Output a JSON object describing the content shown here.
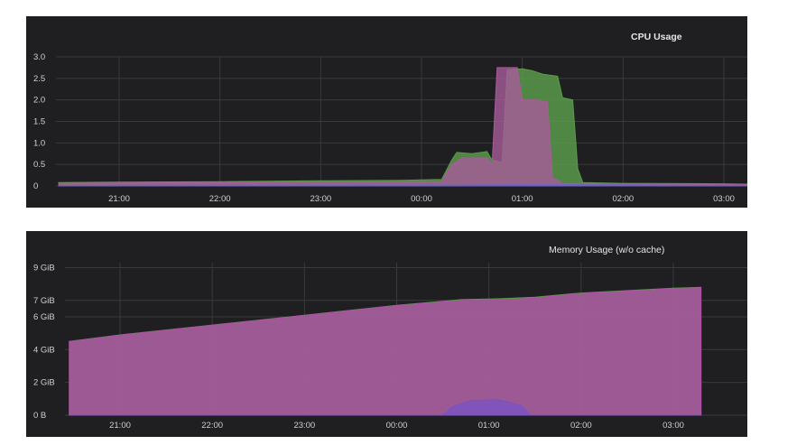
{
  "chart_data": [
    {
      "type": "area",
      "title": "CPU Usage",
      "x_ticks": [
        "21:00",
        "22:00",
        "23:00",
        "00:00",
        "01:00",
        "02:00",
        "03:00"
      ],
      "y_ticks": [
        "0",
        "0.5",
        "1.0",
        "1.5",
        "2.0",
        "2.5",
        "3.0"
      ],
      "x_range_hours": [
        20.4,
        27.3
      ],
      "ylim": [
        0,
        3.0
      ],
      "grid": true,
      "legend": "none",
      "series": [
        {
          "color": "#5b9a4a",
          "points": [
            [
              20.4,
              0.08
            ],
            [
              21.0,
              0.09
            ],
            [
              22.0,
              0.1
            ],
            [
              23.0,
              0.12
            ],
            [
              23.8,
              0.13
            ],
            [
              24.2,
              0.15
            ],
            [
              24.3,
              0.6
            ],
            [
              24.35,
              0.78
            ],
            [
              24.5,
              0.75
            ],
            [
              24.65,
              0.8
            ],
            [
              24.7,
              0.6
            ],
            [
              24.8,
              0.55
            ],
            [
              24.85,
              2.7
            ],
            [
              25.0,
              2.72
            ],
            [
              25.1,
              2.68
            ],
            [
              25.2,
              2.6
            ],
            [
              25.35,
              2.55
            ],
            [
              25.4,
              2.05
            ],
            [
              25.5,
              2.0
            ],
            [
              25.55,
              0.4
            ],
            [
              25.6,
              0.08
            ],
            [
              26.0,
              0.06
            ],
            [
              27.0,
              0.05
            ],
            [
              27.3,
              0.04
            ]
          ]
        },
        {
          "color": "#a85b9a",
          "points": [
            [
              20.4,
              0.06
            ],
            [
              21.0,
              0.07
            ],
            [
              22.0,
              0.08
            ],
            [
              23.0,
              0.09
            ],
            [
              24.2,
              0.1
            ],
            [
              24.3,
              0.5
            ],
            [
              24.4,
              0.65
            ],
            [
              24.65,
              0.65
            ],
            [
              24.7,
              0.5
            ],
            [
              24.75,
              2.75
            ],
            [
              24.95,
              2.75
            ],
            [
              25.0,
              2.0
            ],
            [
              25.15,
              2.0
            ],
            [
              25.25,
              1.95
            ],
            [
              25.3,
              0.2
            ],
            [
              25.4,
              0.06
            ],
            [
              26.0,
              0.05
            ],
            [
              27.3,
              0.04
            ]
          ]
        },
        {
          "color": "#6c63c8",
          "points": [
            [
              20.4,
              0.01
            ],
            [
              24.3,
              0.02
            ],
            [
              25.0,
              0.03
            ],
            [
              25.4,
              0.03
            ],
            [
              27.3,
              0.01
            ]
          ]
        }
      ]
    },
    {
      "type": "area",
      "title": "Memory Usage (w/o cache)",
      "x_ticks": [
        "21:00",
        "22:00",
        "23:00",
        "00:00",
        "01:00",
        "02:00",
        "03:00"
      ],
      "y_ticks": [
        "0 B",
        "2 GiB",
        "4 GiB",
        "6 GiB",
        "7 GiB",
        "9 GiB"
      ],
      "x_range_hours": [
        20.45,
        27.3
      ],
      "ylim": [
        0,
        9.3
      ],
      "grid": true,
      "legend": "none",
      "series": [
        {
          "color": "#5b9a4a",
          "points": [
            [
              20.45,
              4.5
            ],
            [
              21.0,
              4.9
            ],
            [
              22.0,
              5.5
            ],
            [
              23.0,
              6.1
            ],
            [
              24.0,
              6.7
            ],
            [
              24.7,
              7.05
            ],
            [
              25.1,
              7.1
            ],
            [
              25.5,
              7.2
            ],
            [
              26.0,
              7.45
            ],
            [
              27.0,
              7.75
            ],
            [
              27.3,
              7.8
            ]
          ]
        },
        {
          "color": "#b04da8",
          "points": [
            [
              20.45,
              4.48
            ],
            [
              21.0,
              4.88
            ],
            [
              22.0,
              5.48
            ],
            [
              23.0,
              6.08
            ],
            [
              24.0,
              6.68
            ],
            [
              24.7,
              7.0
            ],
            [
              25.1,
              7.0
            ],
            [
              25.5,
              7.15
            ],
            [
              26.0,
              7.42
            ],
            [
              27.0,
              7.72
            ],
            [
              27.3,
              7.78
            ]
          ]
        },
        {
          "color": "#7a52c4",
          "points": [
            [
              20.45,
              0
            ],
            [
              24.5,
              0
            ],
            [
              24.6,
              0.5
            ],
            [
              24.8,
              0.9
            ],
            [
              25.1,
              0.95
            ],
            [
              25.35,
              0.6
            ],
            [
              25.45,
              0
            ],
            [
              27.3,
              0
            ]
          ]
        }
      ]
    }
  ]
}
